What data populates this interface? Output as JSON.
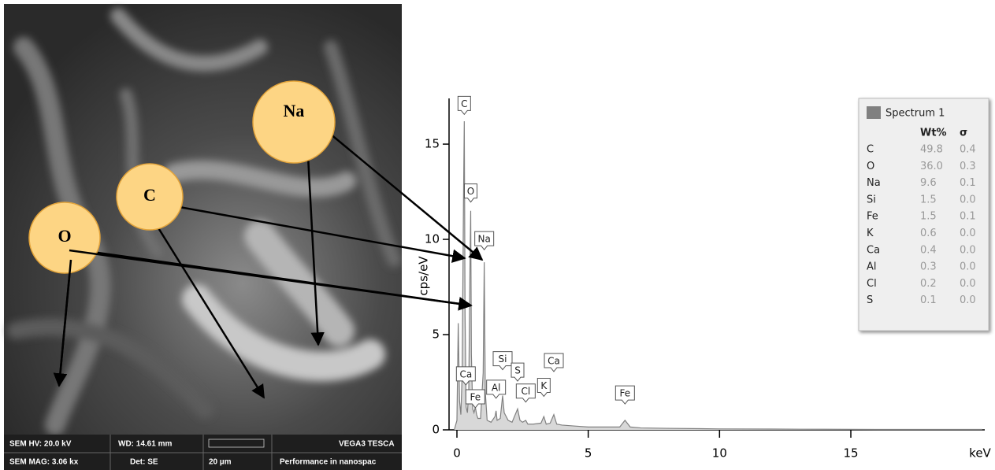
{
  "chart_data": {
    "type": "line",
    "y_label": "cps/eV",
    "x_label": "keV",
    "x": [
      -0.1,
      0,
      0.05,
      0.1,
      0.15,
      0.2,
      0.25,
      0.28,
      0.31,
      0.35,
      0.4,
      0.45,
      0.5,
      0.525,
      0.55,
      0.6,
      0.65,
      0.7,
      0.75,
      0.8,
      0.9,
      1.0,
      1.04,
      1.08,
      1.15,
      1.3,
      1.45,
      1.49,
      1.53,
      1.65,
      1.74,
      1.8,
      1.95,
      2.1,
      2.31,
      2.4,
      2.5,
      2.62,
      2.7,
      2.9,
      3.2,
      3.31,
      3.4,
      3.55,
      3.69,
      3.8,
      4.0,
      4.5,
      5.0,
      5.5,
      6.2,
      6.4,
      6.6,
      7.0,
      8,
      10,
      12,
      14,
      16,
      18,
      20
    ],
    "series": [
      {
        "name": "Spectrum 1",
        "color": "#808080",
        "values": [
          0,
          0.5,
          5.6,
          1.5,
          0.8,
          3,
          12,
          16.2,
          6,
          1.2,
          0.9,
          2,
          9,
          11.5,
          4,
          1.1,
          0.9,
          1.2,
          0.8,
          0.6,
          0.6,
          3,
          8.8,
          2,
          0.5,
          0.4,
          0.7,
          1.0,
          0.5,
          0.6,
          1.8,
          0.9,
          0.5,
          0.4,
          1.1,
          0.5,
          0.4,
          0.5,
          0.3,
          0.3,
          0.35,
          0.7,
          0.3,
          0.35,
          0.8,
          0.3,
          0.25,
          0.2,
          0.15,
          0.15,
          0.15,
          0.5,
          0.15,
          0.1,
          0.08,
          0.05,
          0.04,
          0.03,
          0.02,
          0.02,
          0.02
        ]
      }
    ],
    "xlim": [
      -0.3,
      20.1
    ],
    "xticks": [
      0,
      5,
      10,
      15
    ],
    "ylim": [
      0,
      17.4
    ],
    "yticks": [
      0,
      5,
      10,
      15
    ],
    "peak_labels": [
      {
        "text": "C",
        "x": 0.28,
        "y": 16.6
      },
      {
        "text": "O",
        "x": 0.525,
        "y": 12.0
      },
      {
        "text": "Na",
        "x": 1.04,
        "y": 9.5
      },
      {
        "text": "Ca",
        "x": 0.34,
        "y": 2.4
      },
      {
        "text": "Fe",
        "x": 0.7,
        "y": 1.2
      },
      {
        "text": "Al",
        "x": 1.49,
        "y": 1.7
      },
      {
        "text": "Si",
        "x": 1.74,
        "y": 3.2
      },
      {
        "text": "S",
        "x": 2.31,
        "y": 2.6
      },
      {
        "text": "Cl",
        "x": 2.62,
        "y": 1.5
      },
      {
        "text": "K",
        "x": 3.31,
        "y": 1.8
      },
      {
        "text": "Ca",
        "x": 3.69,
        "y": 3.1
      },
      {
        "text": "Fe",
        "x": 6.4,
        "y": 1.4
      }
    ],
    "legend_table": {
      "title": "Spectrum 1",
      "columns": [
        "Wt%",
        "σ"
      ],
      "rows": [
        [
          "C",
          "49.8",
          "0.4"
        ],
        [
          "O",
          "36.0",
          "0.3"
        ],
        [
          "Na",
          "9.6",
          "0.1"
        ],
        [
          "Si",
          "1.5",
          "0.0"
        ],
        [
          "Fe",
          "1.5",
          "0.1"
        ],
        [
          "K",
          "0.6",
          "0.0"
        ],
        [
          "Ca",
          "0.4",
          "0.0"
        ],
        [
          "Al",
          "0.3",
          "0.0"
        ],
        [
          "Cl",
          "0.2",
          "0.0"
        ],
        [
          "S",
          "0.1",
          "0.0"
        ]
      ]
    }
  },
  "image_panel": {
    "callouts": [
      "Na",
      "C",
      "O"
    ],
    "info_bar": [
      [
        "SEM HV: 20.0 kV",
        "WD: 14.61 mm",
        "VEGA3 TESCA"
      ],
      [
        "SEM MAG: 3.06 kx",
        "Det: SE",
        "20 µm",
        "Performance in nanospac"
      ]
    ]
  }
}
